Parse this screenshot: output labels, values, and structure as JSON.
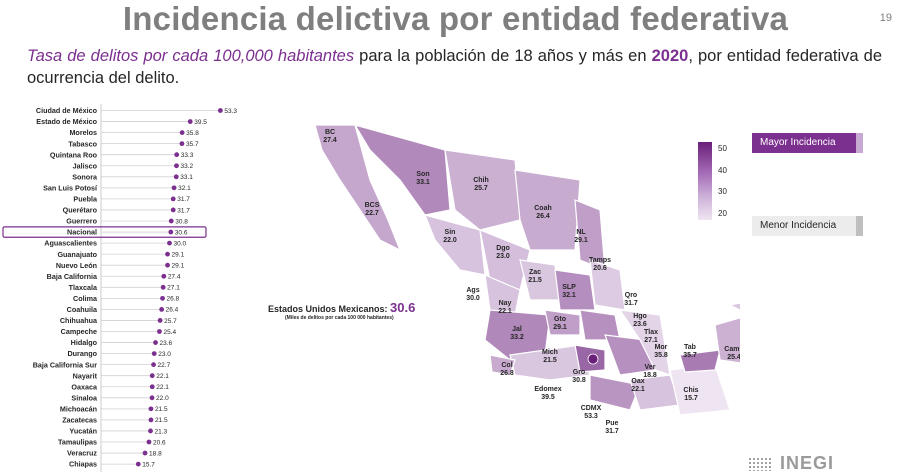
{
  "title": "Incidencia delictiva por entidad federativa",
  "page_number": "19",
  "subtitle": {
    "highlight": "Tasa de delitos por cada 100,000 habitantes",
    "text1": " para la población de 18 años y más en ",
    "year": "2020",
    "text2": ", por entidad federativa de ocurrencia del delito."
  },
  "national": {
    "label": "Estados Unidos Mexicanos: ",
    "value": "30.6",
    "note": "(Miles de delitos por cada 100 000 habitantes)"
  },
  "legend": {
    "max_label": "Mayor Incidencia",
    "min_label": "Menor Incidencia",
    "ticks": [
      "50",
      "40",
      "30",
      "20"
    ]
  },
  "logo_text": "INEGI",
  "colors": {
    "accent": "#7b2f8e",
    "national_box": "#7b2f8e",
    "grid": "#d9d9d9"
  },
  "chart_data": {
    "type": "lollipop",
    "highlight_category": "Nacional",
    "categories": [
      "Ciudad de México",
      "Estado de México",
      "Morelos",
      "Tabasco",
      "Quintana Roo",
      "Jalisco",
      "Sonora",
      "San Luis Potosí",
      "Puebla",
      "Querétaro",
      "Guerrero",
      "Nacional",
      "Aguascalientes",
      "Guanajuato",
      "Nuevo León",
      "Baja California",
      "Tlaxcala",
      "Colima",
      "Coahuila",
      "Chihuahua",
      "Campeche",
      "Hidalgo",
      "Durango",
      "Baja California Sur",
      "Nayarit",
      "Oaxaca",
      "Sinaloa",
      "Michoacán",
      "Zacatecas",
      "Yucatán",
      "Tamaulipas",
      "Veracruz",
      "Chiapas"
    ],
    "values": [
      53.3,
      39.5,
      35.8,
      35.7,
      33.3,
      33.2,
      33.1,
      32.1,
      31.7,
      31.7,
      30.8,
      30.6,
      30.0,
      29.1,
      29.1,
      27.4,
      27.1,
      26.8,
      26.4,
      25.7,
      25.4,
      23.6,
      23.0,
      22.7,
      22.1,
      22.1,
      22.0,
      21.5,
      21.5,
      21.3,
      20.6,
      18.8,
      15.7
    ],
    "value_labels": [
      "53.3",
      "39.5",
      "35.8",
      "35.7",
      "33.3",
      "33.2",
      "33.1",
      "32.1",
      "31.7",
      "31.7",
      "30.8",
      "30.6",
      "30.0",
      "29.1",
      "29.1",
      "27.4",
      "27.1",
      "26.8",
      "26.4",
      "25.7",
      "25.4",
      "23.6",
      "23.0",
      "22.7",
      "22.1",
      "22.1",
      "22.0",
      "21.5",
      "21.5",
      "21.3",
      "20.6",
      "18.8",
      "15.7"
    ]
  },
  "map_labels": [
    {
      "abbr": "BC",
      "value": "27.4"
    },
    {
      "abbr": "Son",
      "value": "33.1"
    },
    {
      "abbr": "Chih",
      "value": "25.7"
    },
    {
      "abbr": "Coah",
      "value": "26.4"
    },
    {
      "abbr": "NL",
      "value": "29.1"
    },
    {
      "abbr": "BCS",
      "value": "22.7"
    },
    {
      "abbr": "Sin",
      "value": "22.0"
    },
    {
      "abbr": "Dgo",
      "value": "23.0"
    },
    {
      "abbr": "Tamps",
      "value": "20.6"
    },
    {
      "abbr": "Zac",
      "value": "21.5"
    },
    {
      "abbr": "SLP",
      "value": "32.1"
    },
    {
      "abbr": "Ags",
      "value": "30.0"
    },
    {
      "abbr": "Nay",
      "value": "22.1"
    },
    {
      "abbr": "Gto",
      "value": "29.1"
    },
    {
      "abbr": "Qro",
      "value": "31.7"
    },
    {
      "abbr": "Hgo",
      "value": "23.6"
    },
    {
      "abbr": "Jal",
      "value": "33.2"
    },
    {
      "abbr": "Tlax",
      "value": "27.1"
    },
    {
      "abbr": "Mor",
      "value": "35.8"
    },
    {
      "abbr": "Tab",
      "value": "35.7"
    },
    {
      "abbr": "Yuc",
      "value": "21.3"
    },
    {
      "abbr": "Camp",
      "value": "25.4"
    },
    {
      "abbr": "QRoo",
      "value": "33.3"
    },
    {
      "abbr": "Col",
      "value": "26.8"
    },
    {
      "abbr": "Mich",
      "value": "21.5"
    },
    {
      "abbr": "Ver",
      "value": "18.8"
    },
    {
      "abbr": "Gro",
      "value": "30.8"
    },
    {
      "abbr": "Oax",
      "value": "22.1"
    },
    {
      "abbr": "Chis",
      "value": "15.7"
    },
    {
      "abbr": "Edomex",
      "value": "39.5"
    },
    {
      "abbr": "CDMX",
      "value": "53.3"
    },
    {
      "abbr": "Pue",
      "value": "31.7"
    }
  ]
}
